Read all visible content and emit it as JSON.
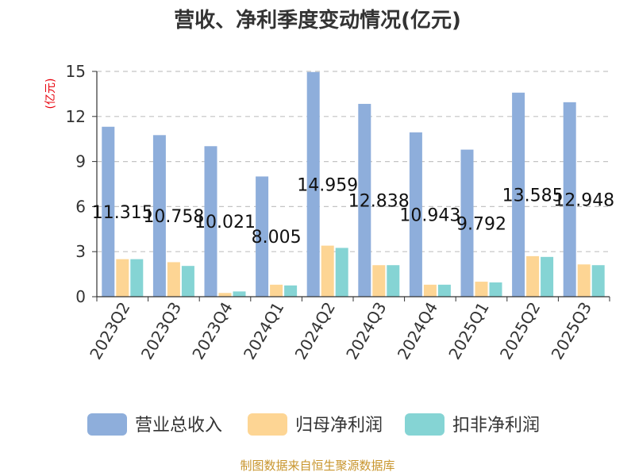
{
  "chart_data": {
    "type": "bar",
    "title": "营收、净利季度变动情况(亿元)",
    "ylabel": "(亿元)",
    "ylim": [
      0,
      15
    ],
    "yticks": [
      "0",
      "3",
      "6",
      "9",
      "12",
      "15"
    ],
    "categories": [
      "2023Q2",
      "2023Q3",
      "2023Q4",
      "2024Q1",
      "2024Q2",
      "2024Q3",
      "2024Q4",
      "2025Q1",
      "2025Q2",
      "2025Q3"
    ],
    "series": [
      {
        "name": "营业总收入",
        "color": "#8eaedb",
        "values": [
          11.315,
          10.758,
          10.021,
          8.005,
          14.959,
          12.838,
          10.943,
          9.792,
          13.585,
          12.948
        ],
        "labels": [
          "11.315",
          "10.758",
          "10.021",
          "8.005",
          "14.959",
          "12.838",
          "10.943",
          "9.792",
          "13.585",
          "12.948"
        ]
      },
      {
        "name": "归母净利润",
        "color": "#fdd594",
        "values": [
          2.5,
          2.3,
          0.25,
          0.8,
          3.4,
          2.1,
          0.8,
          1.0,
          2.7,
          2.15
        ]
      },
      {
        "name": "扣非净利润",
        "color": "#85d4d4",
        "values": [
          2.5,
          2.05,
          0.35,
          0.75,
          3.25,
          2.1,
          0.8,
          0.95,
          2.65,
          2.1
        ]
      }
    ],
    "grid": true,
    "legend_position": "bottom"
  },
  "source": "制图数据来自恒生聚源数据库"
}
